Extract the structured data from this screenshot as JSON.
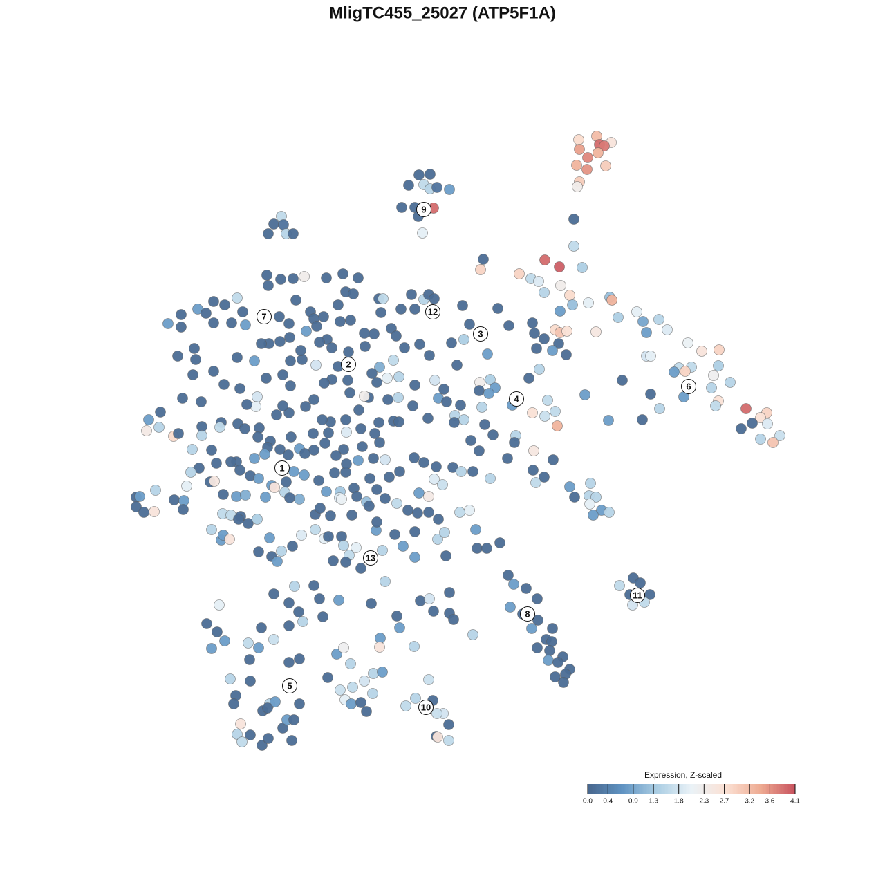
{
  "chart_data": {
    "type": "scatter",
    "title": "MligTC455_25027 (ATP5F1A)",
    "xlim": [
      0,
      1280
    ],
    "ylim": [
      1280,
      0
    ],
    "x": [
      837,
      863,
      884,
      867,
      874,
      838,
      865,
      850,
      834,
      849,
      876,
      838,
      835,
      606,
      622,
      591,
      613,
      622,
      632,
      650,
      581,
      600,
      627,
      605,
      611,
      407,
      396,
      410,
      388,
      414,
      424,
      830,
      830,
      699,
      695,
      788,
      809,
      842,
      751,
      768,
      779,
      811,
      787,
      824,
      828,
      851,
      882,
      885,
      810,
      894,
      921,
      930,
      953,
      965,
      935,
      862,
      803,
      810,
      820,
      808,
      819,
      799,
      995,
      1015,
      1040,
      935,
      941,
      982,
      1000,
      1039,
      991,
      975,
      1032,
      1056,
      1029,
      989,
      1039,
      1035,
      1079,
      1109,
      1100,
      1110,
      1100,
      1128,
      1118,
      1088,
      1072,
      900,
      941,
      954,
      929,
      880,
      846,
      770,
      773,
      787,
      776,
      736,
      720,
      669,
      679,
      671,
      653,
      705,
      661,
      780,
      765,
      709,
      716,
      694,
      693,
      707,
      697,
      741,
      792,
      803,
      770,
      788,
      806,
      746,
      734,
      772,
      800,
      771,
      787,
      775,
      709,
      744,
      713,
      701,
      681,
      693,
      666,
      658,
      671,
      657,
      655,
      667,
      684,
      916,
      926,
      896,
      911,
      940,
      915,
      932,
      735,
      743,
      761,
      777,
      738,
      756,
      778,
      769,
      799,
      790,
      798,
      777,
      795,
      814,
      793,
      807,
      824,
      818,
      803,
      815,
      824,
      854,
      831,
      852,
      862,
      853,
      870,
      858,
      881,
      688,
      679,
      665,
      723,
      690,
      704,
      645,
      600,
      633,
      643,
      600,
      553,
      583,
      536,
      243,
      262,
      262,
      286,
      298,
      309,
      325,
      343,
      351,
      355,
      335,
      309,
      281,
      257,
      283,
      279,
      309,
      324,
      264,
      291,
      232,
      215,
      212,
      230,
      251,
      258,
      292,
      292,
      278,
      306,
      313,
      288,
      276,
      270,
      304,
      310,
      225,
      197,
      202,
      197,
      208,
      223,
      252,
      266,
      265,
      323,
      342,
      355,
      322,
      348,
      334,
      306,
      320,
      323,
      332,
      345,
      359,
      372,
      374,
      390,
      393,
      401,
      407,
      423,
      436,
      456,
      469,
      475,
      494,
      497,
      515,
      505,
      482,
      500,
      522,
      388,
      406,
      424,
      440,
      386,
      472,
      496,
      518,
      500,
      511,
      428,
      489,
      449,
      468,
      492,
      507,
      454,
      404,
      418,
      443,
      458,
      473,
      462,
      480,
      504,
      527,
      541,
      528,
      551,
      548,
      554,
      566,
      573,
      580,
      595,
      613,
      620,
      628,
      600,
      607,
      621,
      585,
      569,
      549,
      538,
      545,
      560,
      577,
      600,
      629,
      642,
      634,
      646,
      619,
      597,
      576,
      561,
      533,
      527,
      519,
      500,
      478,
      466,
      454,
      442,
      418,
      409,
      400,
      372,
      370,
      357,
      347,
      385,
      409,
      420,
      437,
      420,
      457,
      489,
      480,
      469,
      503,
      506,
      389,
      378,
      405,
      419,
      435,
      368,
      343,
      344,
      320,
      318,
      354,
      375,
      373,
      391,
      421,
      433,
      453,
      475,
      501,
      522,
      542,
      548,
      569,
      577,
      549,
      524,
      497,
      486,
      470,
      454,
      441,
      417,
      405,
      387,
      383,
      368,
      342,
      334,
      347,
      362,
      374,
      393,
      397,
      384,
      412,
      419,
      433,
      414,
      425,
      440,
      461,
      472,
      492,
      491,
      494,
      512,
      516,
      530,
      535,
      545,
      557,
      574,
      563,
      590,
      604,
      606,
      620,
      628,
      640,
      631,
      613,
      599,
      578,
      557,
      540,
      518,
      500,
      484,
      501,
      456,
      478,
      509,
      534,
      544,
      571,
      634,
      620,
      545,
      463,
      396,
      426,
      454,
      462,
      490,
      537,
      557,
      608,
      621,
      650,
      627,
      650,
      656,
      574,
      578,
      550,
      549,
      599,
      684,
      317,
      299,
      314,
      325,
      306,
      378,
      396,
      418,
      432,
      438,
      418,
      467,
      359,
      374,
      361,
      418,
      433,
      487,
      497,
      507,
      474,
      527,
      540,
      553,
      333,
      362,
      341,
      338,
      390,
      398,
      380,
      387,
      433,
      492,
      510,
      539,
      499,
      508,
      522,
      530,
      620,
      601,
      626,
      587,
      641,
      632,
      649,
      631,
      633,
      649,
      348,
      343,
      362,
      350,
      379,
      388,
      409,
      415,
      425,
      422
    ],
    "y": [
      202,
      197,
      206,
      209,
      211,
      216,
      221,
      228,
      239,
      245,
      240,
      263,
      270,
      253,
      252,
      268,
      267,
      273,
      271,
      274,
      300,
      300,
      301,
      313,
      337,
      313,
      324,
      325,
      338,
      338,
      338,
      317,
      356,
      375,
      390,
      376,
      386,
      387,
      396,
      403,
      407,
      413,
      423,
      427,
      441,
      438,
      430,
      434,
      450,
      459,
      451,
      465,
      462,
      477,
      481,
      480,
      477,
      481,
      479,
      497,
      513,
      507,
      496,
      508,
      506,
      515,
      515,
      532,
      531,
      529,
      537,
      538,
      543,
      553,
      561,
      574,
      580,
      587,
      591,
      597,
      604,
      613,
      635,
      630,
      640,
      612,
      620,
      550,
      570,
      591,
      607,
      608,
      571,
      467,
      482,
      490,
      504,
      471,
      446,
      442,
      469,
      491,
      496,
      512,
      528,
      534,
      547,
      549,
      561,
      553,
      565,
      569,
      589,
      586,
      579,
      595,
      597,
      602,
      616,
      630,
      663,
      652,
      665,
      680,
      690,
      698,
      692,
      640,
      629,
      614,
      637,
      652,
      586,
      601,
      607,
      611,
      676,
      682,
      682,
      836,
      843,
      847,
      860,
      860,
      875,
      871,
      832,
      845,
      851,
      866,
      878,
      888,
      897,
      909,
      909,
      925,
      928,
      937,
      941,
      950,
      955,
      958,
      968,
      975,
      979,
      987,
      704,
      699,
      719,
      717,
      719,
      729,
      738,
      745,
      741,
      766,
      738,
      741,
      785,
      793,
      793,
      804,
      806,
      780,
      770,
      769,
      796,
      790,
      808,
      468,
      455,
      473,
      447,
      453,
      436,
      441,
      431,
      451,
      470,
      467,
      467,
      504,
      515,
      520,
      542,
      537,
      556,
      576,
      581,
      596,
      607,
      623,
      618,
      631,
      627,
      617,
      630,
      650,
      651,
      670,
      677,
      683,
      703,
      697,
      696,
      709,
      719,
      718,
      733,
      741,
      740,
      723,
      724,
      737,
      715,
      718,
      716,
      743,
      747,
      745,
      766,
      781,
      774,
      780,
      751,
      757,
      751,
      798,
      778,
      805,
      812,
      797,
      790,
      774,
      766,
      779,
      776,
      776,
      789,
      792,
      803,
      811,
      813,
      822,
      413,
      404,
      403,
      400,
      398,
      402,
      396,
      402,
      422,
      425,
      434,
      441,
      451,
      458,
      465,
      463,
      461,
      458,
      468,
      479,
      472,
      491,
      495,
      503,
      509,
      482,
      483,
      501,
      452,
      432,
      432,
      475,
      486,
      447,
      426,
      433,
      426,
      432,
      447,
      498,
      514,
      503,
      521,
      531,
      540,
      553,
      547,
      545,
      557,
      550,
      563,
      576,
      581,
      605,
      587,
      575,
      578,
      575,
      573,
      593,
      607,
      610,
      607,
      578,
      588,
      597,
      587,
      600,
      574,
      588,
      585,
      562,
      547,
      542,
      558,
      520,
      522,
      528,
      530,
      549,
      554,
      550,
      568,
      497,
      497,
      494,
      488,
      507,
      522,
      517,
      613,
      611,
      618,
      620,
      619,
      632,
      638,
      632,
      649,
      627,
      626,
      625,
      620,
      627,
      611,
      609,
      610,
      640,
      646,
      650,
      659,
      641,
      651,
      656,
      658,
      650,
      647,
      657,
      663,
      668,
      668,
      680,
      688,
      692,
      702,
      705,
      719,
      712,
      720,
      722,
      697,
      682,
      687,
      695,
      711,
      711,
      720,
      722,
      706,
      718,
      726,
      692,
      708,
      721,
      728,
      690,
      738,
      742,
      713,
      718,
      693,
      701,
      675,
      669,
      662,
      682,
      665,
      663,
      666,
      683,
      684,
      671,
      744,
      746,
      745,
      732,
      767,
      773,
      751,
      741,
      755,
      735,
      859,
      848,
      847,
      866,
      868,
      873,
      841,
      869,
      866,
      857,
      884,
      887,
      896,
      891,
      908,
      923,
      936,
      935,
      918,
      875,
      902,
      914,
      927,
      938,
      908,
      925,
      905,
      885,
      899,
      872,
      892,
      930,
      937,
      954,
      958,
      953,
      946,
      937,
      960,
      980,
      985,
      974,
      972,
      982,
      985,
      1006,
      1018,
      1018,
      1015,
      1028,
      1024,
      1018,
      998,
      994,
      1003,
      1012,
      1018,
      1016,
      1029,
      983,
      1010,
      1013,
      1021,
      1032,
      1032,
      1048,
      1065,
      1066,
      1071,
      1047,
      1062,
      1063,
      1073,
      1078,
      1068,
      1053,
      1041,
      1041,
      1071
    ],
    "values": [
      2.8,
      3.2,
      2.6,
      3.9,
      3.8,
      3.5,
      3.3,
      3.7,
      3.3,
      3.6,
      3.0,
      3.0,
      2.3,
      0.1,
      0.1,
      0.1,
      1.6,
      1.5,
      0.2,
      0.8,
      0.1,
      0.1,
      3.9,
      0.1,
      2.0,
      1.6,
      0.1,
      0.2,
      0.1,
      1.5,
      0.1,
      0.1,
      1.6,
      0.1,
      2.9,
      3.9,
      4.0,
      1.4,
      2.9,
      1.6,
      1.9,
      2.3,
      1.5,
      2.8,
      1.2,
      2.0,
      1.2,
      3.3,
      0.8,
      1.4,
      2.0,
      0.9,
      1.5,
      1.9,
      0.8,
      2.5,
      2.8,
      3.1,
      2.7,
      0.1,
      0.1,
      0.8,
      2.1,
      2.6,
      2.9,
      1.8,
      2.0,
      1.6,
      1.6,
      1.4,
      2.9,
      0.8,
      2.2,
      1.5,
      1.5,
      0.8,
      2.7,
      1.6,
      3.9,
      2.9,
      2.7,
      1.9,
      1.5,
      1.7,
      3.1,
      0.1,
      0.1,
      0.1,
      0.1,
      1.5,
      0.1,
      0.8,
      0.8,
      0.1,
      0.1,
      0.1,
      0.1,
      0.1,
      0.1,
      0.1,
      0.1,
      1.4,
      0.1,
      0.8,
      0.1,
      1.5,
      0.1,
      1.4,
      0.8,
      2.3,
      0.1,
      0.8,
      1.5,
      0.8,
      1.6,
      1.6,
      2.7,
      1.7,
      3.3,
      1.5,
      0.1,
      2.5,
      0.1,
      0.1,
      0.1,
      1.6,
      1.5,
      0.1,
      0.1,
      0.1,
      0.1,
      0.1,
      0.1,
      1.5,
      1.5,
      0.1,
      0.1,
      1.5,
      0.1,
      0.1,
      0.1,
      1.6,
      0.1,
      0.1,
      1.8,
      1.6,
      0.1,
      0.8,
      0.1,
      0.1,
      0.8,
      0.1,
      0.1,
      0.8,
      0.1,
      0.1,
      0.1,
      0.1,
      0.1,
      0.1,
      0.8,
      0.1,
      0.1,
      0.1,
      0.1,
      0.1,
      0.8,
      1.5,
      0.1,
      1.5,
      1.5,
      2.0,
      0.8,
      0.8,
      1.5,
      0.8,
      2.0,
      1.6,
      0.1,
      0.1,
      0.1,
      0.1,
      0.8,
      1.5,
      1.5,
      0.1,
      1.5,
      0.8,
      1.5,
      0.8,
      0.1,
      0.1,
      0.8,
      0.1,
      0.1,
      0.1,
      1.6,
      0.1,
      0.8,
      0.1,
      0.1,
      0.1,
      0.1,
      0.1,
      0.1,
      0.1,
      0.1,
      0.1,
      0.1,
      0.1,
      0.8,
      2.4,
      1.5,
      2.8,
      0.1,
      0.1,
      1.5,
      1.5,
      0.1,
      0.1,
      0.1,
      1.5,
      2.0,
      0.1,
      2.5,
      1.5,
      0.1,
      0.8,
      0.1,
      0.1,
      2.6,
      0.1,
      0.8,
      0.1,
      0.1,
      0.8,
      1.0,
      1.6,
      0.1,
      1.6,
      1.5,
      0.8,
      0.8,
      2.6,
      0.1,
      0.1,
      1.4,
      0.1,
      0.8,
      0.1,
      0.8,
      1.5,
      0.1,
      1.9,
      1.6,
      2.0,
      0.1,
      0.1,
      1.5,
      2.0,
      1.6,
      0.1,
      0.1,
      0.1,
      0.1,
      0.1,
      0.1,
      2.3,
      0.1,
      0.1,
      0.1,
      0.1,
      0.1,
      0.1,
      0.1,
      0.1,
      0.1,
      0.1,
      0.1,
      0.1,
      0.1,
      0.1,
      0.1,
      0.8,
      0.1,
      0.1,
      0.1,
      0.1,
      0.1,
      0.1,
      0.1,
      0.1,
      0.1,
      0.1,
      1.6,
      0.1,
      0.1,
      0.1,
      0.1,
      1.5,
      0.1,
      0.1,
      0.1,
      0.1,
      0.1,
      0.1,
      1.6,
      1.0,
      0.1,
      0.1,
      2.0,
      1.5,
      0.1,
      1.8,
      0.1,
      0.8,
      0.1,
      0.1,
      0.1,
      1.5,
      0.1,
      0.1,
      2.3,
      0.1,
      0.1,
      0.1,
      0.1,
      0.1,
      0.1,
      0.1,
      0.1,
      0.1,
      1.8,
      2.0,
      0.1,
      0.1,
      0.1,
      0.1,
      0.1,
      0.1,
      0.1,
      1.8,
      0.1,
      0.1,
      0.1,
      0.1,
      0.1,
      0.1,
      0.1,
      0.1,
      0.1,
      0.1,
      0.8,
      0.1,
      0.1,
      0.1,
      1.6,
      0.1,
      0.1,
      0.1,
      0.1,
      0.1,
      0.8,
      0.1,
      0.1,
      1.9,
      0.1,
      0.1,
      0.1,
      0.1,
      0.1,
      0.1,
      0.1,
      0.1,
      0.1,
      0.1,
      0.1,
      0.1,
      0.1,
      0.1,
      0.1,
      0.8,
      0.8,
      0.1,
      0.1,
      0.1,
      0.1,
      0.8,
      0.8,
      2.6,
      0.8,
      1.5,
      0.1,
      1.0,
      0.1,
      0.8,
      0.8,
      0.1,
      0.8,
      1.3,
      1.9,
      2.1,
      0.1,
      0.1,
      1.2,
      0.1,
      0.1,
      0.1,
      1.6,
      0.1,
      0.1,
      0.1,
      0.8,
      2.4,
      1.9,
      1.7,
      0.1,
      0.1,
      0.1,
      0.1,
      1.8,
      0.1,
      0.8,
      0.1,
      0.1,
      0.1,
      0.1,
      0.1,
      0.1,
      0.1,
      0.8,
      0.1,
      0.1,
      0.1,
      0.1,
      0.1,
      0.1,
      1.5,
      0.1,
      0.1,
      0.8,
      0.1,
      1.5,
      0.1,
      1.8,
      0.1,
      0.1,
      0.1,
      0.1,
      0.1,
      0.8,
      0.8,
      2.6,
      1.5,
      1.5,
      2.0,
      0.1,
      0.1,
      0.8,
      0.8,
      0.1,
      1.7,
      0.1,
      0.1,
      1.5,
      0.1,
      0.1,
      1.6,
      0.8,
      0.1,
      0.1,
      0.1,
      0.8,
      2.2,
      1.5,
      0.1,
      1.8,
      1.5,
      0.8,
      1.5,
      0.1,
      0.1,
      0.1,
      1.5,
      0.8,
      0.1,
      0.1,
      0.1,
      1.7,
      1.6,
      1.5,
      2.0,
      0.8,
      0.1,
      0.1,
      1.7,
      1.5,
      0.1,
      1.6,
      1.8,
      1.7,
      0.1,
      0.1,
      2.6,
      1.6,
      2.6,
      1.5,
      0.1,
      1.6,
      0.1,
      0.1,
      0.1,
      0.8,
      0.1,
      0.1
    ],
    "cluster_labels": [
      {
        "text": "1",
        "x": 408,
        "y": 677
      },
      {
        "text": "2",
        "x": 504,
        "y": 527
      },
      {
        "text": "3",
        "x": 695,
        "y": 483
      },
      {
        "text": "4",
        "x": 747,
        "y": 577
      },
      {
        "text": "5",
        "x": 419,
        "y": 992
      },
      {
        "text": "6",
        "x": 996,
        "y": 559
      },
      {
        "text": "7",
        "x": 382,
        "y": 458
      },
      {
        "text": "8",
        "x": 763,
        "y": 888
      },
      {
        "text": "9",
        "x": 613,
        "y": 303
      },
      {
        "text": "10",
        "x": 616,
        "y": 1023
      },
      {
        "text": "11",
        "x": 922,
        "y": 861
      },
      {
        "text": "12",
        "x": 626,
        "y": 451
      },
      {
        "text": "13",
        "x": 536,
        "y": 807
      }
    ],
    "colorbar": {
      "title": "Expression, Z-scaled",
      "clim": [
        0,
        4.1
      ],
      "colors": [
        "#48668d",
        "#5f93c2",
        "#aacde3",
        "#eaf2f7",
        "#fbe1d4",
        "#eeab92",
        "#c8525e"
      ],
      "ticks": [
        {
          "value": 0,
          "label": "0.0"
        },
        0.4,
        0.9,
        1.3,
        1.8,
        2.3,
        2.7,
        3.2,
        3.6,
        4.1
      ]
    }
  }
}
